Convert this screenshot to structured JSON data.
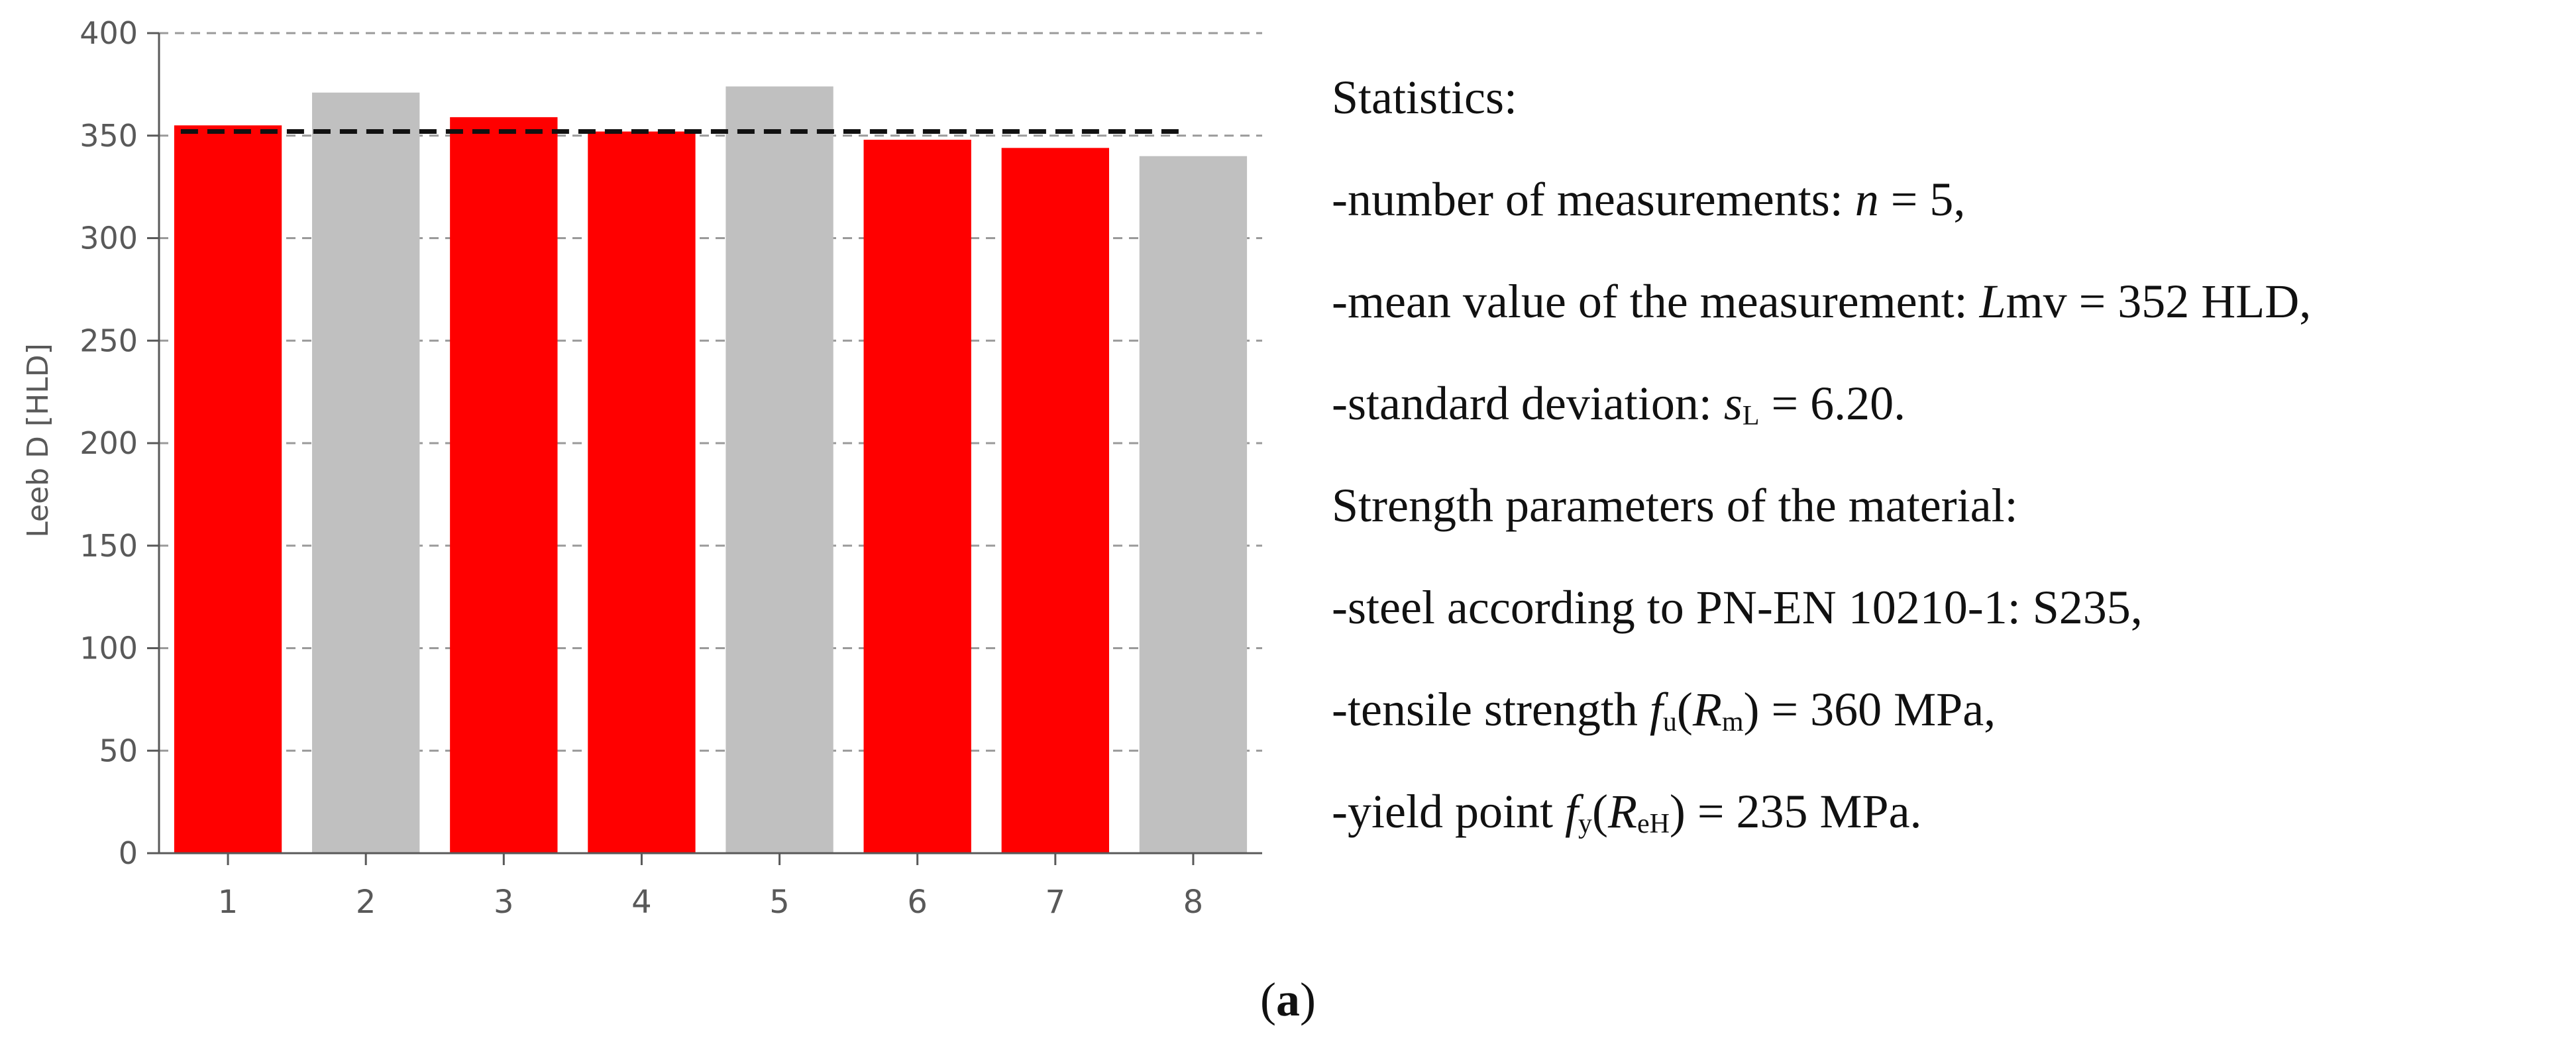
{
  "chart_data": {
    "type": "bar",
    "title": "",
    "xlabel": "",
    "ylabel": "Leeb D [HLD]",
    "categories": [
      "1",
      "2",
      "3",
      "4",
      "5",
      "6",
      "7",
      "8"
    ],
    "values": [
      355,
      371,
      359,
      352,
      374,
      348,
      344,
      340
    ],
    "bar_colors": [
      "#ff0000",
      "#c0c0c0",
      "#ff0000",
      "#ff0000",
      "#c0c0c0",
      "#ff0000",
      "#ff0000",
      "#c0c0c0"
    ],
    "ylim": [
      0,
      400
    ],
    "yticks": [
      0,
      50,
      100,
      150,
      200,
      250,
      300,
      350,
      400
    ],
    "mean_line": 352,
    "grid": "dashed-horizontal"
  },
  "stats": {
    "heading": "Statistics:",
    "n_prefix": "-number of measurements: ",
    "n_symbol": "n",
    "n_value": " = 5,",
    "mean_prefix": "-mean value of the measurement: ",
    "mean_symbol": "L",
    "mean_sub": "mv",
    "mean_value": " = 352 HLD,",
    "sd_prefix": "-standard deviation: ",
    "sd_symbol": "s",
    "sd_sub": "L",
    "sd_value": " = 6.20.",
    "strength_heading": "Strength parameters of the material:",
    "steel_line": "-steel according to PN-EN 10210-1: S235,",
    "tensile_prefix": "-tensile strength ",
    "tensile_f": "f",
    "tensile_f_sub": "u",
    "tensile_open": "(",
    "tensile_R": "R",
    "tensile_R_sub": "m",
    "tensile_value": ") = 360 MPa,",
    "yield_prefix": "-yield point ",
    "yield_f": "f",
    "yield_f_sub": "y",
    "yield_open": "(",
    "yield_R": "R",
    "yield_R_sub": "eH",
    "yield_value": ") = 235 MPa."
  },
  "caption": {
    "open": "(",
    "label": "a",
    "close": ")"
  }
}
